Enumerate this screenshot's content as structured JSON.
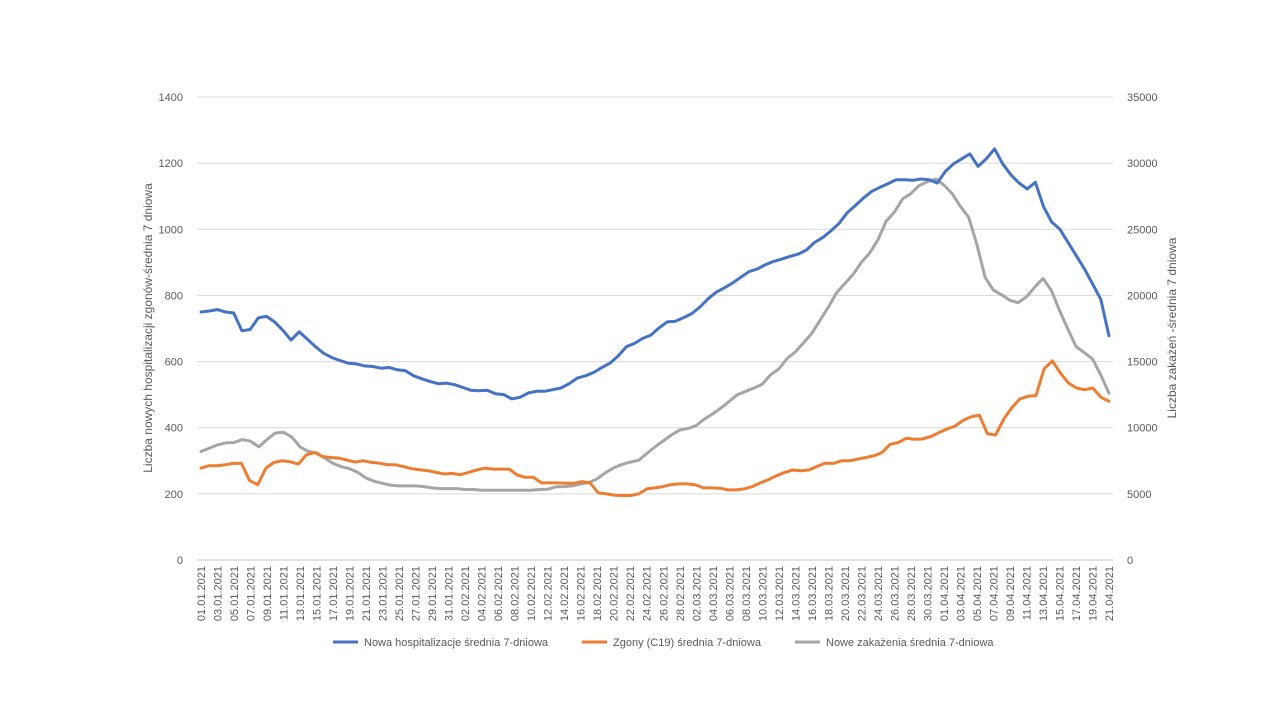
{
  "chart_data": {
    "type": "line",
    "title": "",
    "y_left_label": "Liczba nowych hospitalizacji zgonów-średnia 7 dniowa",
    "y_right_label": "Liczba zakażeń -średnia 7 dniowa",
    "y_left_lim": [
      0,
      1400
    ],
    "y_left_ticks": [
      "0",
      "200",
      "400",
      "600",
      "800",
      "1000",
      "1200",
      "1400"
    ],
    "y_right_lim": [
      0,
      35000
    ],
    "y_right_ticks": [
      "0",
      "5000",
      "10000",
      "15000",
      "20000",
      "25000",
      "30000",
      "35000"
    ],
    "grid": true,
    "legend_position": "bottom",
    "x_tick_labels": [
      "01.01.2021",
      "03.01.2021",
      "05.01.2021",
      "07.01.2021",
      "09.01.2021",
      "11.01.2021",
      "13.01.2021",
      "15.01.2021",
      "17.01.2021",
      "19.01.2021",
      "21.01.2021",
      "23.01.2021",
      "25.01.2021",
      "27.01.2021",
      "29.01.2021",
      "31.01.2021",
      "02.02.2021",
      "04.02.2021",
      "06.02.2021",
      "08.02.2021",
      "10.02.2021",
      "12.02.2021",
      "14.02.2021",
      "16.02.2021",
      "18.02.2021",
      "20.02.2021",
      "22.02.2021",
      "24.02.2021",
      "26.02.2021",
      "28.02.2021",
      "02.03.2021",
      "04.03.2021",
      "06.03.2021",
      "08.03.2021",
      "10.03.2021",
      "12.03.2021",
      "14.03.2021",
      "16.03.2021",
      "18.03.2021",
      "20.03.2021",
      "22.03.2021",
      "24.03.2021",
      "26.03.2021",
      "28.03.2021",
      "30.03.2021",
      "01.04.2021",
      "03.04.2021",
      "05.04.2021",
      "07.04.2021",
      "09.04.2021",
      "11.04.2021",
      "13.04.2021",
      "15.04.2021",
      "17.04.2021",
      "19.04.2021",
      "21.04.2021"
    ],
    "series": [
      {
        "name": "Nowa hospitalizacje średnia 7-dniowa",
        "axis": "left",
        "color": "#4472C4",
        "values": [
          750,
          753,
          757,
          750,
          747,
          693,
          697,
          732,
          737,
          720,
          695,
          665,
          690,
          668,
          645,
          625,
          612,
          603,
          595,
          593,
          587,
          585,
          580,
          582,
          575,
          572,
          557,
          548,
          540,
          533,
          535,
          530,
          522,
          513,
          512,
          513,
          503,
          500,
          487,
          492,
          505,
          510,
          510,
          515,
          520,
          533,
          550,
          557,
          567,
          582,
          595,
          617,
          645,
          655,
          670,
          680,
          702,
          720,
          722,
          733,
          745,
          765,
          790,
          810,
          823,
          838,
          855,
          872,
          880,
          893,
          903,
          910,
          918,
          925,
          937,
          960,
          975,
          995,
          1018,
          1050,
          1072,
          1095,
          1115,
          1127,
          1138,
          1150,
          1150,
          1148,
          1152,
          1150,
          1140,
          1175,
          1198,
          1213,
          1228,
          1190,
          1213,
          1243,
          1198,
          1165,
          1140,
          1122,
          1142,
          1068,
          1022,
          1000,
          960,
          920,
          880,
          835,
          788,
          678
        ]
      },
      {
        "name": "Zgony (C19) średnia 7-dniowa",
        "axis": "left",
        "color": "#ED7D31",
        "values": [
          278,
          285,
          285,
          288,
          292,
          292,
          240,
          228,
          278,
          295,
          300,
          297,
          290,
          318,
          325,
          313,
          310,
          308,
          302,
          296,
          300,
          295,
          293,
          288,
          288,
          282,
          276,
          273,
          270,
          265,
          260,
          262,
          258,
          265,
          272,
          278,
          275,
          275,
          275,
          257,
          250,
          250,
          233,
          233,
          233,
          232,
          232,
          237,
          233,
          203,
          200,
          196,
          195,
          195,
          200,
          215,
          218,
          222,
          228,
          230,
          230,
          227,
          218,
          218,
          217,
          212,
          212,
          215,
          222,
          233,
          243,
          255,
          265,
          272,
          270,
          272,
          283,
          293,
          292,
          300,
          300,
          305,
          310,
          315,
          325,
          350,
          355,
          368,
          365,
          366,
          373,
          385,
          396,
          405,
          422,
          433,
          438,
          382,
          378,
          425,
          460,
          487,
          495,
          497,
          578,
          602,
          565,
          535,
          520,
          515,
          520,
          492,
          480
        ]
      },
      {
        "name": "Nowe zakażenia średnia 7-dniowa",
        "axis": "right",
        "color": "#A5A5A5",
        "values": [
          8200,
          8450,
          8700,
          8850,
          8880,
          9100,
          8980,
          8550,
          9100,
          9600,
          9650,
          9300,
          8550,
          8200,
          8100,
          7700,
          7300,
          7050,
          6900,
          6620,
          6200,
          5950,
          5800,
          5650,
          5600,
          5600,
          5600,
          5550,
          5450,
          5400,
          5400,
          5400,
          5330,
          5330,
          5270,
          5270,
          5270,
          5270,
          5270,
          5270,
          5270,
          5330,
          5350,
          5530,
          5550,
          5600,
          5750,
          5850,
          6140,
          6600,
          6960,
          7230,
          7400,
          7540,
          8040,
          8560,
          9000,
          9460,
          9830,
          9940,
          10170,
          10660,
          11050,
          11500,
          12000,
          12500,
          12750,
          13000,
          13300,
          14000,
          14440,
          15230,
          15720,
          16420,
          17130,
          18130,
          19110,
          20200,
          20900,
          21590,
          22500,
          23200,
          24200,
          25600,
          26300,
          27300,
          27700,
          28300,
          28600,
          28800,
          28350,
          27690,
          26730,
          25900,
          23850,
          21350,
          20400,
          20040,
          19630,
          19450,
          19900,
          20620,
          21280,
          20400,
          18870,
          17470,
          16150,
          15680,
          15200,
          14000,
          12600
        ]
      }
    ]
  }
}
